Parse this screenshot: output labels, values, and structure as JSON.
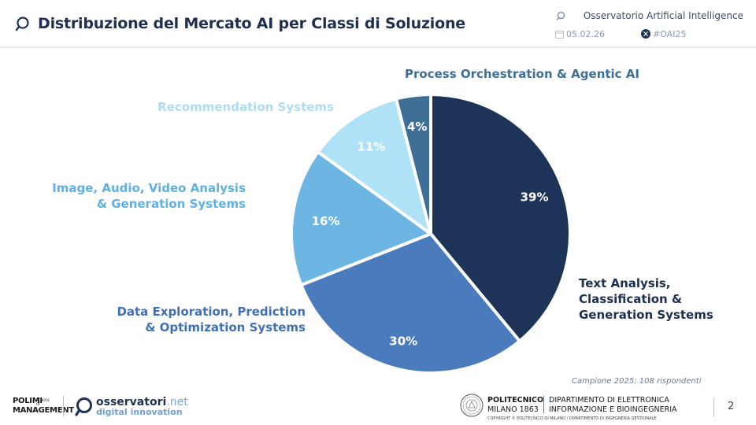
{
  "header": {
    "title": "Distribuzione del Mercato AI per Classi di Soluzione",
    "observatory": "Osservatorio Artificial Intelligence",
    "date": "05.02.26",
    "hashtag": "#OAI25"
  },
  "chart_data": {
    "type": "pie",
    "title": "Distribuzione del Mercato AI per Classi di Soluzione",
    "unit": "%",
    "slices": [
      {
        "label": "Text Analysis, Classification & Generation Systems",
        "value": 39,
        "display": "39%",
        "color": "#1e3358"
      },
      {
        "label": "Data Exploration, Prediction & Optimization Systems",
        "value": 30,
        "display": "30%",
        "color": "#4a7bbd"
      },
      {
        "label": "Image, Audio, Video Analysis & Generation Systems",
        "value": 16,
        "display": "16%",
        "color": "#6db6e3"
      },
      {
        "label": "Recommendation Systems",
        "value": 11,
        "display": "11%",
        "color": "#afe1f7"
      },
      {
        "label": "Process Orchestration & Agentic AI",
        "value": 4,
        "display": "4%",
        "color": "#3f6f97"
      }
    ],
    "label_colors": [
      "#1e2f52",
      "#3f6fb5",
      "#5fb1e3",
      "#b0dcf3",
      "#3c6f98"
    ]
  },
  "labels": {
    "text_line1": "Text Analysis,",
    "text_line2": "Classification &",
    "text_line3": "Generation Systems",
    "data_line1": "Data Exploration, Prediction",
    "data_line2": "& Optimization Systems",
    "image_line1": "Image, Audio, Video Analysis",
    "image_line2": "& Generation Systems",
    "rec": "Recommendation Systems",
    "proc": "Process Orchestration & Agentic AI"
  },
  "footer": {
    "sample_note": "Campione 2025: 108 rispondenti",
    "polimi_line1": "POLIMI",
    "polimi_line2": "MANAGEMENT",
    "polimi_small1": "SCHOOL",
    "polimi_small2": "OF",
    "obs_name": "osservatori",
    "obs_net": ".net",
    "obs_sub": "digital innovation",
    "poli_name": "POLITECNICO",
    "poli_city": "MILANO 1863",
    "dept_line1": "DIPARTIMENTO DI ELETTRONICA",
    "dept_line2": "INFORMAZIONE E BIOINGEGNERIA",
    "copyright": "COPYRIGHT © POLITECNICO DI MILANO / DIPARTIMENTO DI INGEGNERIA GESTIONALE",
    "page": "2"
  }
}
